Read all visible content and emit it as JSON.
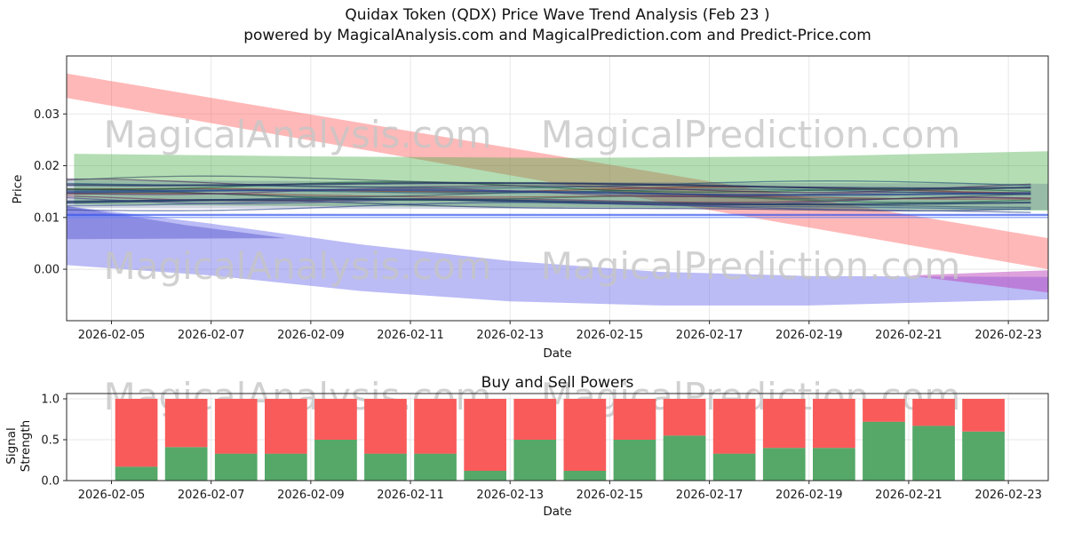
{
  "figure": {
    "title": "Quidax Token (QDX) Price Wave Trend Analysis (Feb 23 )",
    "subtitle": "powered by MagicalAnalysis.com and MagicalPrediction.com and Predict-Price.com",
    "watermarks": [
      "MagicalAnalysis.com",
      "MagicalPrediction.com"
    ]
  },
  "colors": {
    "axis": "#262626",
    "grid": "#e7e7e7",
    "watermark": "#c6c6c6",
    "buy_green": "#55a868",
    "sell_red": "#f95b5b"
  },
  "chart_data": [
    {
      "type": "area",
      "title": "Quidax Token (QDX) Price Wave Trend Analysis (Feb 23 )",
      "subtitle": "powered by MagicalAnalysis.com and MagicalPrediction.com and Predict-Price.com",
      "xlabel": "Date",
      "ylabel": "Price",
      "xlim": [
        -0.9,
        18.8
      ],
      "ylim": [
        -0.00994,
        0.0412
      ],
      "grid": true,
      "legend": "none",
      "yticks": [
        {
          "v": 0.03,
          "label": "0.03"
        },
        {
          "v": 0.02,
          "label": "0.02"
        },
        {
          "v": 0.01,
          "label": "0.01"
        },
        {
          "v": 0.0,
          "label": "0.00"
        }
      ],
      "xticks": [
        {
          "d": 0,
          "label": "2026-02-05"
        },
        {
          "d": 2,
          "label": "2026-02-07"
        },
        {
          "d": 4,
          "label": "2026-02-09"
        },
        {
          "d": 6,
          "label": "2026-02-11"
        },
        {
          "d": 8,
          "label": "2026-02-13"
        },
        {
          "d": 10,
          "label": "2026-02-15"
        },
        {
          "d": 12,
          "label": "2026-02-17"
        },
        {
          "d": 14,
          "label": "2026-02-19"
        },
        {
          "d": 16,
          "label": "2026-02-21"
        },
        {
          "d": 18,
          "label": "2026-02-23"
        }
      ],
      "bands": [
        {
          "name": "bearish-red-band",
          "color": "#ff5555",
          "opacity": 0.42,
          "points": [
            [
              -0.9,
              0.0378
            ],
            [
              18.8,
              0.006
            ],
            [
              18.8,
              0.0
            ],
            [
              -0.9,
              0.0331
            ]
          ]
        },
        {
          "name": "bullish-green-band",
          "color": "#44aa44",
          "opacity": 0.4,
          "points": [
            [
              -0.75,
              0.0223
            ],
            [
              4,
              0.0218
            ],
            [
              9,
              0.0215
            ],
            [
              14,
              0.0218
            ],
            [
              18.8,
              0.0228
            ],
            [
              18.8,
              0.0113
            ],
            [
              14,
              0.0117
            ],
            [
              9,
              0.012
            ],
            [
              4,
              0.0122
            ],
            [
              -0.75,
              0.0125
            ]
          ]
        },
        {
          "name": "bearish-blue-band",
          "color": "#7777ee",
          "opacity": 0.5,
          "points": [
            [
              -0.9,
              0.0122
            ],
            [
              2,
              0.0088
            ],
            [
              5,
              0.0048
            ],
            [
              8,
              0.0016
            ],
            [
              11,
              -0.0005
            ],
            [
              14,
              -0.0013
            ],
            [
              18.8,
              -0.0015
            ],
            [
              18.8,
              -0.0058
            ],
            [
              14,
              -0.007
            ],
            [
              11,
              -0.007
            ],
            [
              8,
              -0.0062
            ],
            [
              5,
              -0.0042
            ],
            [
              2,
              -0.0012
            ],
            [
              -0.9,
              0.0008
            ]
          ]
        },
        {
          "name": "blue-wedge",
          "color": "#5555cc",
          "opacity": 0.45,
          "points": [
            [
              -0.9,
              0.0122
            ],
            [
              1.5,
              0.0085
            ],
            [
              3.5,
              0.006
            ],
            [
              -0.9,
              0.0058
            ]
          ]
        },
        {
          "name": "magenta-wedge",
          "color": "#bb44bb",
          "opacity": 0.5,
          "points": [
            [
              16,
              -0.0012
            ],
            [
              18.8,
              -0.0002
            ],
            [
              18.8,
              -0.0045
            ]
          ]
        },
        {
          "name": "trend-cluster-band",
          "color": "#334477",
          "opacity": 0.22,
          "points": [
            [
              -0.9,
              0.0172
            ],
            [
              18.8,
              0.0165
            ],
            [
              18.8,
              0.0115
            ],
            [
              -0.9,
              0.0118
            ]
          ]
        }
      ],
      "flat_lines": [
        {
          "y": 0.0105,
          "color": "#3355ee",
          "width": 2.4,
          "opacity": 0.7
        },
        {
          "y": 0.01,
          "color": "#6688ff",
          "width": 1.5,
          "opacity": 0.6
        }
      ],
      "cluster": {
        "count": 16,
        "center_start": 0.0146,
        "center_end": 0.0139,
        "spread": 0.0028,
        "wiggle": 0.0005,
        "colors": [
          "#27408b",
          "#1c2f6b",
          "#3b5998",
          "#2f4f6f",
          "#4a3f8c",
          "#6b2d5c",
          "#1f6b4a",
          "#8b3a3a",
          "#2c3e50",
          "#5b2c6f",
          "#1a5276",
          "#7b241c",
          "#145a32",
          "#4a235a",
          "#1b4f72",
          "#34495e"
        ],
        "heavy": [
          {
            "offset": -0.0012,
            "color": "#1f3864",
            "width": 2.2
          },
          {
            "offset": 0.0006,
            "color": "#27408b",
            "width": 2.2
          },
          {
            "offset": 0.002,
            "color": "#203060",
            "width": 2.0
          }
        ]
      }
    },
    {
      "type": "bar",
      "title": "Buy and Sell Powers",
      "xlabel": "Date",
      "ylabel": "Signal Strength",
      "stacked": true,
      "xlim": [
        -0.9,
        18.8
      ],
      "ylim": [
        0,
        1.065
      ],
      "bar_width": 0.85,
      "yticks": [
        {
          "v": 1.0,
          "label": "1.0"
        },
        {
          "v": 0.5,
          "label": "0.5"
        },
        {
          "v": 0.0,
          "label": "0.0"
        }
      ],
      "xticks": [
        {
          "d": 0,
          "label": "2026-02-05"
        },
        {
          "d": 2,
          "label": "2026-02-07"
        },
        {
          "d": 4,
          "label": "2026-02-09"
        },
        {
          "d": 6,
          "label": "2026-02-11"
        },
        {
          "d": 8,
          "label": "2026-02-13"
        },
        {
          "d": 10,
          "label": "2026-02-15"
        },
        {
          "d": 12,
          "label": "2026-02-17"
        },
        {
          "d": 14,
          "label": "2026-02-19"
        },
        {
          "d": 16,
          "label": "2026-02-21"
        },
        {
          "d": 18,
          "label": "2026-02-23"
        }
      ],
      "categories": [
        "2026-02-05",
        "2026-02-06",
        "2026-02-07",
        "2026-02-08",
        "2026-02-09",
        "2026-02-10",
        "2026-02-11",
        "2026-02-12",
        "2026-02-13",
        "2026-02-14",
        "2026-02-15",
        "2026-02-16",
        "2026-02-17",
        "2026-02-18",
        "2026-02-19",
        "2026-02-20",
        "2026-02-21",
        "2026-02-22"
      ],
      "series": [
        {
          "name": "Buy",
          "color": "#55a868",
          "values": [
            0.17,
            0.41,
            0.33,
            0.33,
            0.5,
            0.33,
            0.33,
            0.12,
            0.5,
            0.12,
            0.5,
            0.55,
            0.33,
            0.4,
            0.4,
            0.72,
            0.67,
            0.6
          ]
        },
        {
          "name": "Sell",
          "color": "#f95b5b",
          "values": [
            0.83,
            0.59,
            0.67,
            0.67,
            0.5,
            0.67,
            0.67,
            0.88,
            0.5,
            0.88,
            0.5,
            0.45,
            0.67,
            0.6,
            0.6,
            0.28,
            0.33,
            0.4
          ]
        }
      ]
    }
  ]
}
